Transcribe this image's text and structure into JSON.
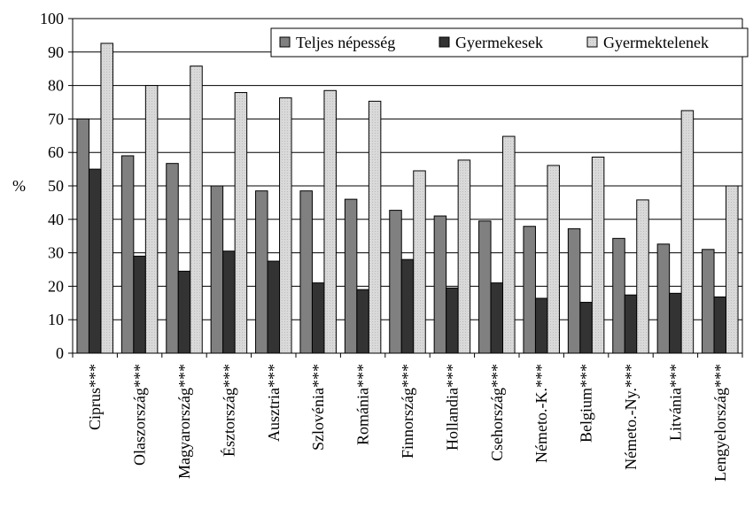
{
  "chart_data": {
    "type": "bar",
    "ylabel": "%",
    "ylim": [
      0,
      100
    ],
    "yticks": [
      0,
      10,
      20,
      30,
      40,
      50,
      60,
      70,
      80,
      90,
      100
    ],
    "grid": true,
    "legend_position": "top-right",
    "categories": [
      "Ciprus***",
      "Olaszország***",
      "Magyarország***",
      "Észtország***",
      "Ausztria***",
      "Szlovénia***",
      "Románia***",
      "Finnország***",
      "Hollandia***",
      "Csehország***",
      "Németo.-K.***",
      "Belgium***",
      "Németo.-Ny.***",
      "Litvánia***",
      "Lengyelország***"
    ],
    "series": [
      {
        "name": "Teljes népesség",
        "color": "#808080",
        "values": [
          70,
          59,
          56.7,
          50,
          48.5,
          48.5,
          46,
          42.7,
          41,
          39.5,
          37.9,
          37.2,
          34.3,
          32.6,
          31
        ]
      },
      {
        "name": "Gyermekesek",
        "color": "#333333",
        "values": [
          55,
          29,
          24.5,
          30.5,
          27.5,
          21,
          19,
          28,
          19.5,
          21,
          16.4,
          15.2,
          17.4,
          17.9,
          16.8
        ]
      },
      {
        "name": "Gyermektelenek",
        "color": "#d9d9d9",
        "values": [
          92.6,
          80,
          85.8,
          77.9,
          76.3,
          78.5,
          75.3,
          54.5,
          57.7,
          64.8,
          56.1,
          58.6,
          45.8,
          72.5,
          50
        ]
      }
    ]
  }
}
